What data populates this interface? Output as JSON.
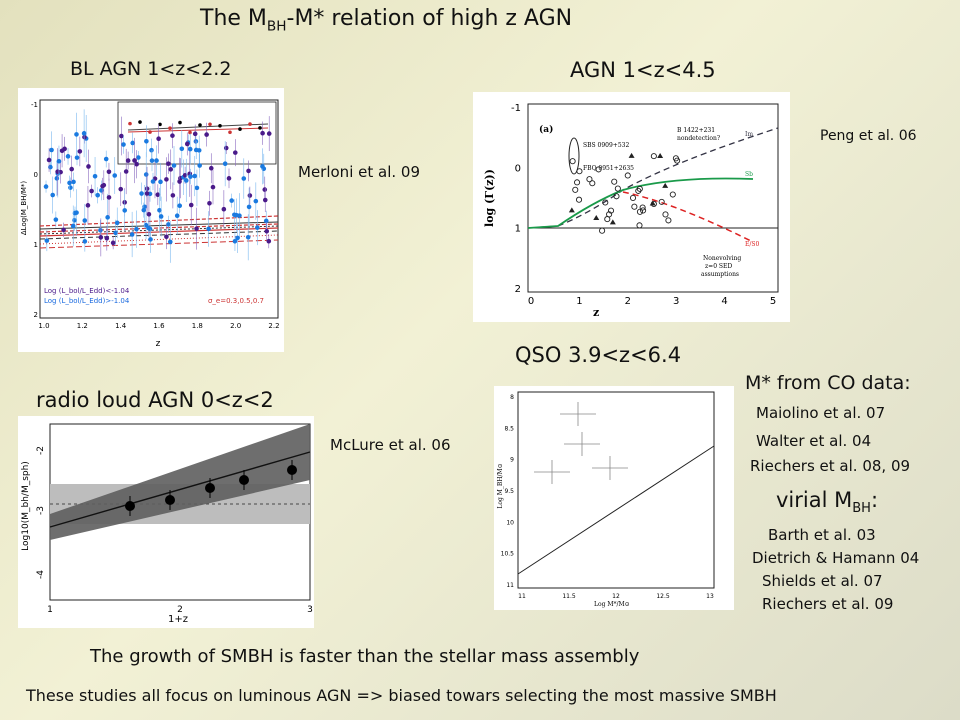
{
  "slide": {
    "title_prefix": "The M",
    "title_sub1": "BH",
    "title_mid": "-M",
    "title_star": "*",
    "title_suffix": " relation of high z AGN"
  },
  "panels": {
    "bl_agn": {
      "heading": "BL AGN 1<z<2.2",
      "reference": "Merloni et al. 09",
      "ylabel": "ΔLog(M_BH/M*)",
      "xlabel": "z",
      "xticks": [
        "1.0",
        "1.2",
        "1.4",
        "1.6",
        "1.8",
        "2.0",
        "2.2"
      ],
      "yticks": [
        "-1",
        "0",
        "1",
        "2"
      ],
      "legend": [
        "Log (L_bol/L_Edd)<-1.04",
        "Log (L_bol/L_Edd)>-1.04"
      ],
      "sigma_label": "σ_e=0.3,0.5,0.7"
    },
    "agn_peng": {
      "heading": "AGN 1<z<4.5",
      "reference": "Peng et al. 06",
      "ylabel": "log (Γ(z))",
      "xlabel": "z",
      "xticks": [
        "0",
        "1",
        "2",
        "3",
        "4",
        "5"
      ],
      "yticks": [
        "-1",
        "0",
        "1",
        "2"
      ],
      "panel_tag": "(a)",
      "annotations": {
        "sbs": "SBS 0909+532",
        "fbq": "FBQ 0951+2635",
        "b1422": "B 1422+231",
        "nondetection": "nondetection?",
        "im": "Im",
        "sb": "Sb",
        "es0": "E/S0",
        "nonevolving1": "Nonevolving",
        "nonevolving2": "z=0 SED",
        "nonevolving3": "assumptions"
      }
    },
    "radio_loud": {
      "heading": "radio loud AGN 0<z<2",
      "reference": "McLure et al. 06",
      "ylabel": "Log10(M_bh/M_sph)",
      "xlabel": "1+z",
      "xticks": [
        "1",
        "2",
        "3"
      ],
      "yticks": [
        "-2",
        "-3",
        "-4"
      ]
    },
    "qso": {
      "heading": "QSO 3.9<z<6.4",
      "ylabel": "Log M_BH/M⊙",
      "xlabel": "Log M*/M⊙",
      "xticks": [
        "11",
        "11.5",
        "12",
        "12.5",
        "13"
      ],
      "yticks": [
        "8",
        "8.5",
        "9",
        "9.5",
        "10",
        "10.5",
        "11"
      ]
    }
  },
  "refs": {
    "mstar_heading": "M* from CO data:",
    "mstar_refs": [
      "Maiolino et al. 07",
      "Walter et al. 04",
      "Riechers et al. 08, 09"
    ],
    "virial_heading_prefix": "virial M",
    "virial_heading_sub": "BH",
    "virial_heading_suffix": ":",
    "virial_refs": [
      "Barth et al. 03",
      "Dietrich & Hamann 04",
      "Shields et al. 07",
      "Riechers et al. 09"
    ]
  },
  "footer": {
    "line1": "The growth of SMBH is faster than the stellar mass assembly",
    "line2": "These studies all focus on luminous AGN => biased towars selecting the most massive SMBH"
  }
}
